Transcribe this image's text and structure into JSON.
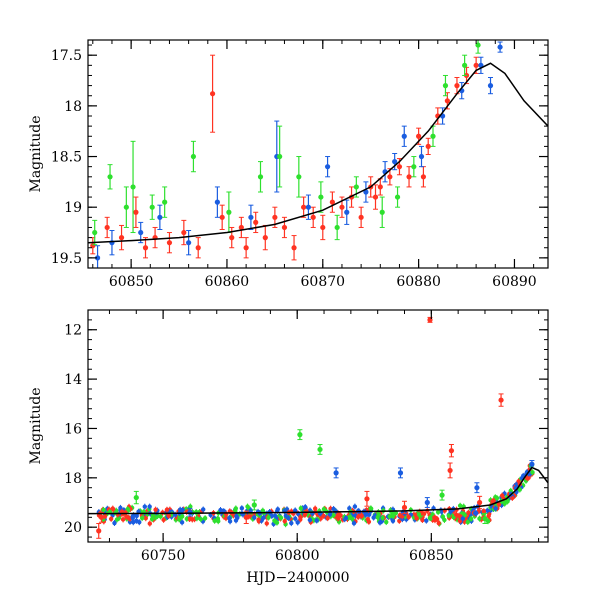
{
  "chart_data": [
    {
      "type": "scatter",
      "xlabel": "",
      "ylabel": "Magnitude",
      "xlim": [
        60845.5,
        60893.5
      ],
      "ylim": [
        19.6,
        17.35
      ],
      "y_inverted": true,
      "xticks": [
        60850,
        60860,
        60870,
        60880,
        60890
      ],
      "xtick_labels": [
        "60850",
        "60860",
        "60870",
        "60880",
        "60890"
      ],
      "yticks": [
        17.5,
        18,
        18.5,
        19,
        19.5
      ],
      "ytick_labels": [
        "17.5",
        "18",
        "18.5",
        "19",
        "19.5"
      ],
      "grid": false,
      "legend": "none",
      "series": [
        {
          "color": "#ff3322",
          "points": [
            [
              60846,
              19.38,
              0.08
            ],
            [
              60847.5,
              19.2,
              0.1
            ],
            [
              60849,
              19.3,
              0.12
            ],
            [
              60850.5,
              19.05,
              0.15
            ],
            [
              60851.5,
              19.4,
              0.1
            ],
            [
              60852.5,
              19.3,
              0.1
            ],
            [
              60854,
              19.35,
              0.1
            ],
            [
              60855.5,
              19.25,
              0.12
            ],
            [
              60857,
              19.4,
              0.1
            ],
            [
              60858.5,
              17.88,
              0.38
            ],
            [
              60859.5,
              19.1,
              0.12
            ],
            [
              60860.5,
              19.3,
              0.1
            ],
            [
              60861.5,
              19.2,
              0.1
            ],
            [
              60863,
              19.15,
              0.1
            ],
            [
              60864,
              19.3,
              0.12
            ],
            [
              60865,
              19.1,
              0.1
            ],
            [
              60866,
              19.2,
              0.1
            ],
            [
              60867,
              19.4,
              0.12
            ],
            [
              60868,
              19.0,
              0.1
            ],
            [
              60869,
              19.1,
              0.1
            ],
            [
              60870,
              19.2,
              0.12
            ],
            [
              60871,
              18.95,
              0.1
            ],
            [
              60872,
              19.0,
              0.1
            ],
            [
              60873,
              18.9,
              0.1
            ],
            [
              60874,
              19.1,
              0.1
            ],
            [
              60875,
              18.8,
              0.1
            ],
            [
              60876,
              18.8,
              0.08
            ],
            [
              60877,
              18.7,
              0.08
            ],
            [
              60878,
              18.6,
              0.08
            ],
            [
              60879,
              18.7,
              0.1
            ],
            [
              60880,
              18.3,
              0.08
            ],
            [
              60881,
              18.4,
              0.08
            ],
            [
              60882,
              18.1,
              0.08
            ],
            [
              60883,
              17.95,
              0.08
            ],
            [
              60884,
              17.8,
              0.08
            ],
            [
              60885,
              17.7,
              0.08
            ],
            [
              60886,
              17.6,
              0.08
            ],
            [
              60880.5,
              18.7,
              0.1
            ],
            [
              60875.5,
              18.9,
              0.12
            ],
            [
              60862,
              19.4,
              0.1
            ]
          ]
        },
        {
          "color": "#1a5de0",
          "points": [
            [
              60846.5,
              19.5,
              0.12
            ],
            [
              60848,
              19.35,
              0.12
            ],
            [
              60851,
              19.25,
              0.1
            ],
            [
              60853,
              19.1,
              0.12
            ],
            [
              60856,
              19.35,
              0.12
            ],
            [
              60859,
              18.95,
              0.15
            ],
            [
              60862.5,
              19.1,
              0.12
            ],
            [
              60865.2,
              18.5,
              0.35
            ],
            [
              60868.5,
              19.0,
              0.12
            ],
            [
              60870.5,
              18.6,
              0.1
            ],
            [
              60872.5,
              19.05,
              0.12
            ],
            [
              60874.5,
              18.85,
              0.1
            ],
            [
              60876.5,
              18.65,
              0.1
            ],
            [
              60877.5,
              18.55,
              0.08
            ],
            [
              60878.5,
              18.3,
              0.1
            ],
            [
              60880.3,
              18.5,
              0.1
            ],
            [
              60882.5,
              18.1,
              0.08
            ],
            [
              60884.5,
              17.85,
              0.08
            ],
            [
              60886.5,
              17.6,
              0.08
            ],
            [
              60887.5,
              17.8,
              0.08
            ],
            [
              60888.5,
              17.42,
              0.05
            ]
          ]
        },
        {
          "color": "#2ee02e",
          "points": [
            [
              60846.2,
              19.25,
              0.12
            ],
            [
              60847.8,
              18.7,
              0.12
            ],
            [
              60849.5,
              19.0,
              0.2
            ],
            [
              60850.2,
              18.8,
              0.45
            ],
            [
              60852.2,
              19.0,
              0.12
            ],
            [
              60853.5,
              18.95,
              0.15
            ],
            [
              60856.5,
              18.5,
              0.15
            ],
            [
              60860.2,
              19.05,
              0.2
            ],
            [
              60863.5,
              18.7,
              0.15
            ],
            [
              60865.5,
              18.5,
              0.3
            ],
            [
              60867.5,
              18.7,
              0.2
            ],
            [
              60869.8,
              18.9,
              0.15
            ],
            [
              60871.5,
              19.2,
              0.12
            ],
            [
              60873.5,
              18.8,
              0.1
            ],
            [
              60876.2,
              19.05,
              0.15
            ],
            [
              60877.8,
              18.9,
              0.1
            ],
            [
              60879.5,
              18.6,
              0.1
            ],
            [
              60881.5,
              18.3,
              0.1
            ],
            [
              60882.8,
              17.8,
              0.1
            ],
            [
              60884.8,
              17.6,
              0.1
            ],
            [
              60886.2,
              17.4,
              0.08
            ]
          ]
        }
      ],
      "model_curve": {
        "color": "#000000",
        "x": [
          60845.5,
          60850,
          60855,
          60860,
          60865,
          60870,
          60875,
          60878,
          60881,
          60884,
          60886,
          60887.5,
          60889,
          60891,
          60893.5
        ],
        "y": [
          19.35,
          19.33,
          19.3,
          19.25,
          19.17,
          19.03,
          18.8,
          18.55,
          18.25,
          17.88,
          17.65,
          17.58,
          17.68,
          17.95,
          18.2
        ]
      }
    },
    {
      "type": "scatter",
      "xlabel": "HJD−2400000",
      "ylabel": "Magnitude",
      "xlim": [
        60722,
        60893.5
      ],
      "ylim": [
        20.6,
        11.2
      ],
      "y_inverted": true,
      "xticks": [
        60750,
        60800,
        60850
      ],
      "xtick_labels": [
        "60750",
        "60800",
        "60850"
      ],
      "yticks": [
        12,
        14,
        16,
        18,
        20
      ],
      "ytick_labels": [
        "12",
        "14",
        "16",
        "18",
        "20"
      ],
      "grid": false,
      "legend": "none",
      "series": [
        {
          "color": "#ff3322",
          "points": [
            [
              60726,
              20.15,
              0.3
            ],
            [
              60727,
              19.6,
              0.2
            ],
            [
              60849.5,
              11.6,
              0.1
            ],
            [
              60876,
              14.85,
              0.25
            ],
            [
              60857.5,
              16.9,
              0.25
            ],
            [
              60857,
              17.7,
              0.3
            ],
            [
              60826,
              18.85,
              0.3
            ],
            [
              60868,
              19.0,
              0.25
            ],
            [
              60840,
              19.2,
              0.25
            ],
            [
              60781,
              19.6,
              0.25
            ]
          ]
        },
        {
          "color": "#1a5de0",
          "points": [
            [
              60814.5,
              17.8,
              0.2
            ],
            [
              60838.5,
              17.8,
              0.2
            ],
            [
              60848.5,
              19.0,
              0.2
            ],
            [
              60867,
              18.4,
              0.2
            ],
            [
              60887.5,
              17.45,
              0.15
            ],
            [
              60760,
              19.4,
              0.15
            ]
          ]
        },
        {
          "color": "#2ee02e",
          "points": [
            [
              60801,
              16.25,
              0.2
            ],
            [
              60808.5,
              16.85,
              0.2
            ],
            [
              60854,
              18.7,
              0.2
            ],
            [
              60870,
              19.65,
              0.2
            ],
            [
              60784,
              19.1,
              0.2
            ],
            [
              60740,
              18.8,
              0.25
            ]
          ]
        }
      ],
      "band": {
        "x_start": 60726,
        "x_end": 60872,
        "mag": 19.5,
        "scatter": 0.25
      },
      "model_curve": {
        "color": "#000000",
        "x": [
          60722,
          60750,
          60800,
          60840,
          60860,
          60872,
          60878,
          60882,
          60885,
          60887.5,
          60890,
          60893.5
        ],
        "y": [
          19.45,
          19.44,
          19.4,
          19.34,
          19.26,
          19.1,
          18.85,
          18.45,
          17.95,
          17.58,
          17.7,
          18.2
        ]
      }
    }
  ]
}
